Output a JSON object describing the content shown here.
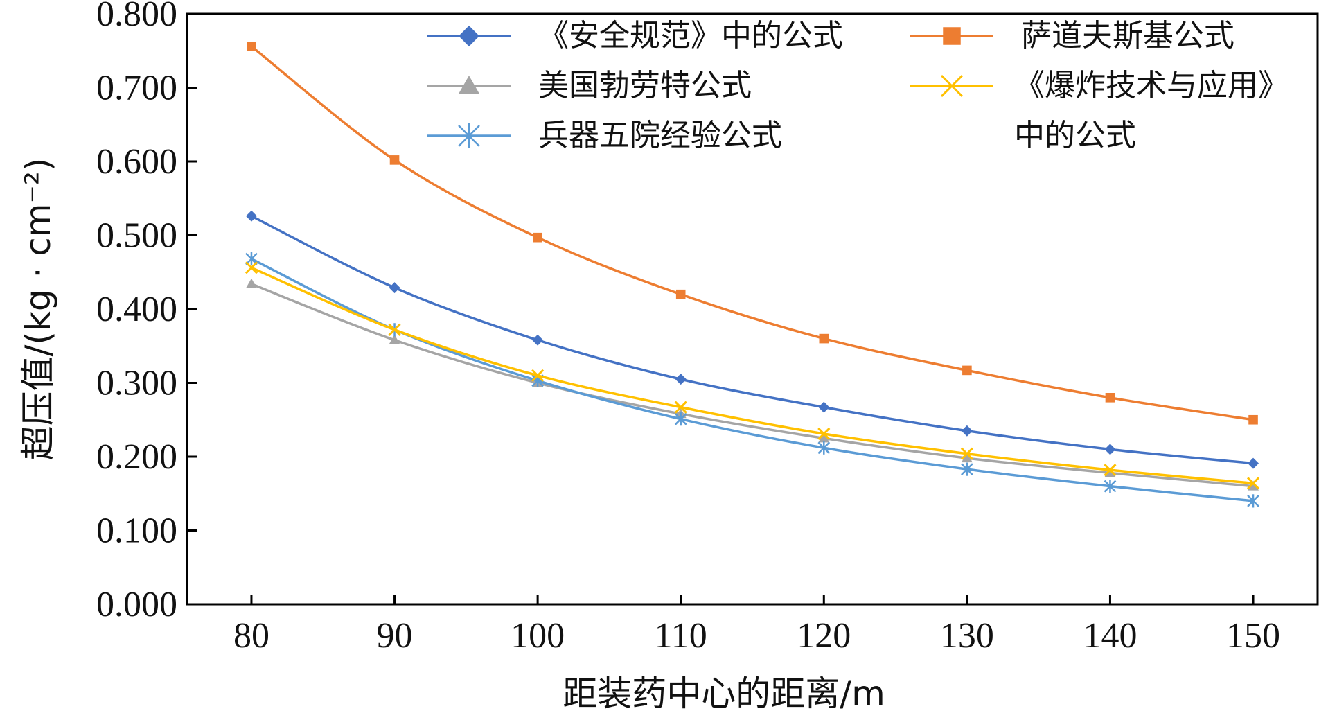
{
  "chart_data": {
    "type": "line",
    "title": "",
    "xlabel": "距装药中心的距离/m",
    "ylabel": "超压值/(kg · cm⁻²)",
    "x": [
      80,
      90,
      100,
      110,
      120,
      130,
      140,
      150
    ],
    "x_ticks": [
      "80",
      "90",
      "100",
      "110",
      "120",
      "130",
      "140",
      "150"
    ],
    "y_ticks": [
      "0.000",
      "0.100",
      "0.200",
      "0.300",
      "0.400",
      "0.500",
      "0.600",
      "0.700",
      "0.800"
    ],
    "xlim": [
      75.5,
      154.5
    ],
    "ylim": [
      0,
      0.8
    ],
    "grid": false,
    "legend_position": "top",
    "series": [
      {
        "name": "《安全规范》中的公式",
        "marker": "diamond",
        "color": "#4472c4",
        "values": [
          0.526,
          0.429,
          0.358,
          0.305,
          0.267,
          0.235,
          0.21,
          0.191
        ]
      },
      {
        "name": "萨道夫斯基公式",
        "marker": "square",
        "color": "#ed7d31",
        "values": [
          0.756,
          0.602,
          0.497,
          0.42,
          0.36,
          0.317,
          0.28,
          0.25
        ]
      },
      {
        "name": "美国勃劳特公式",
        "marker": "triangle",
        "color": "#a5a5a5",
        "values": [
          0.434,
          0.358,
          0.3,
          0.258,
          0.225,
          0.198,
          0.178,
          0.16
        ]
      },
      {
        "name": "《爆炸技术与应用》中的公式",
        "name_lines": [
          "《爆炸技术与应用》",
          "中的公式"
        ],
        "marker": "x",
        "color": "#ffc000",
        "values": [
          0.456,
          0.372,
          0.31,
          0.267,
          0.231,
          0.204,
          0.182,
          0.164
        ]
      },
      {
        "name": "兵器五院经验公式",
        "marker": "asterisk",
        "color": "#5b9bd5",
        "values": [
          0.468,
          0.372,
          0.303,
          0.251,
          0.212,
          0.183,
          0.16,
          0.14
        ]
      }
    ]
  }
}
